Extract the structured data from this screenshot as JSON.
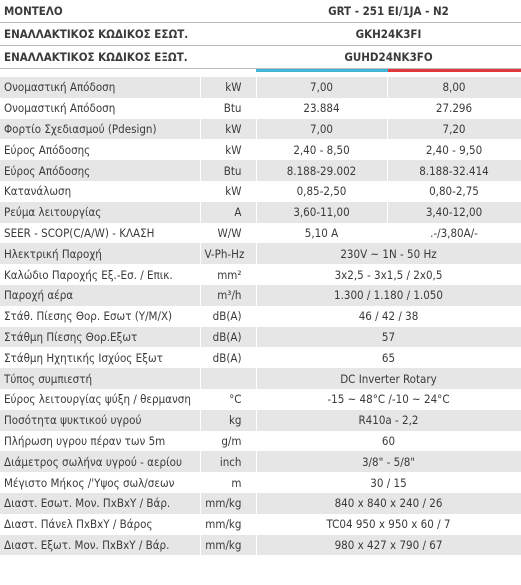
{
  "header": [
    {
      "label": "ΜΟΝΤΕΛΟ",
      "value": "GRT - 251 EI/1JA - N2"
    },
    {
      "label": "ΕΝΑΛΛΑΚΤΙΚΟΣ ΚΩΔΙΚΟΣ ΕΣΩΤ.",
      "value": "GKH24K3FI"
    },
    {
      "label": "ΕΝΑΛΛΑΚΤΙΚΟΣ ΚΩΔΙΚΟΣ ΕΞΩΤ.",
      "value": "GUHD24NK3FO"
    }
  ],
  "rows": [
    {
      "label": "Ονομαστική Απόδοση",
      "unit": "kW",
      "values": [
        "7,00",
        "8,00"
      ]
    },
    {
      "label": "Ονομαστική Απόδοση",
      "unit": "Btu",
      "values": [
        "23.884",
        "27.296"
      ]
    },
    {
      "label": "Φορτίο Σχεδιασμού (Pdesign)",
      "unit": "kW",
      "values": [
        "7,00",
        "7,20"
      ]
    },
    {
      "label": "Εύρος Απόδοσης",
      "unit": "kW",
      "values": [
        "2,40 - 8,50",
        "2,40 - 9,50"
      ]
    },
    {
      "label": "Εύρος Απόδοσης",
      "unit": "Btu",
      "values": [
        "8.188-29.002",
        "8.188-32.414"
      ]
    },
    {
      "label": "Κατανάλωση",
      "unit": "kW",
      "values": [
        "0,85-2,50",
        "0,80-2,75"
      ]
    },
    {
      "label": "Ρεύμα λειτουργίας",
      "unit": "A",
      "values": [
        "3,60-11,00",
        "3,40-12,00"
      ]
    },
    {
      "label": "SEER - SCOP(C/A/W) - ΚΛΑΣΗ",
      "unit": "W/W",
      "values": [
        "5,10 A",
        ".-/3,80A/-"
      ]
    },
    {
      "label": "Ηλεκτρική Παροχή",
      "unit": "V-Ph-Hz",
      "values": [
        "230V ~ 1N - 50 Hz"
      ]
    },
    {
      "label": "Καλώδιο Παροχής Εξ.-Εσ. / Επικ.",
      "unit": "mm²",
      "values": [
        "3x2,5 - 3x1,5 / 2x0,5"
      ]
    },
    {
      "label": "Παροχή αέρα",
      "unit": "m³/h",
      "values": [
        "1.300 / 1.180 / 1.050"
      ]
    },
    {
      "label": "Στάθ. Πίεσης Θορ. Εσωτ (Υ/Μ/Χ)",
      "unit": "dB(A)",
      "values": [
        "46 / 42 / 38"
      ]
    },
    {
      "label": "Στάθμη Πίεσης Θορ.Εξωτ",
      "unit": "dB(A)",
      "values": [
        "57"
      ]
    },
    {
      "label": "Στάθμη Ηχητικής Ισχύος Εξωτ",
      "unit": "dB(A)",
      "values": [
        "65"
      ]
    },
    {
      "label": "Τύπος συμπιεστή",
      "unit": "",
      "values": [
        "DC Inverter Rotary"
      ]
    },
    {
      "label": "Εύρος λειτουργίας ψύξη / θερμανση",
      "unit": "°C",
      "values": [
        "-15 ~ 48°C /-10 ~ 24°C"
      ]
    },
    {
      "label": "Ποσότητα ψυκτικού υγρού",
      "unit": "kg",
      "values": [
        "R410a - 2,2"
      ]
    },
    {
      "label": "Πλήρωση υγρου πέραν των 5m",
      "unit": "g/m",
      "values": [
        "60"
      ]
    },
    {
      "label": "Διάμετρος σωλήνα υγρού - αερίου",
      "unit": "inch",
      "values": [
        "3/8\" - 5/8\""
      ]
    },
    {
      "label": "Μέγιστο Μήκος /'Υψος σωλ/σεων",
      "unit": "m",
      "values": [
        "30 / 15"
      ]
    },
    {
      "label": "Διαστ. Εσωτ. Μον. ΠxΒxΥ / Βάρ.",
      "unit": "mm/kg",
      "values": [
        "840 x 840 x 240 / 26"
      ]
    },
    {
      "label": "Διαστ. Πάνελ ΠxΒxΥ / Βάρος",
      "unit": "mm/kg",
      "values": [
        "TC04 950 x 950 x 60 / 7"
      ]
    },
    {
      "label": "Διαστ. Εξωτ. Μον. ΠxΒxΥ / Βάρ.",
      "unit": "mm/kg",
      "values": [
        "980 x 427 x 790 / 67"
      ]
    }
  ]
}
